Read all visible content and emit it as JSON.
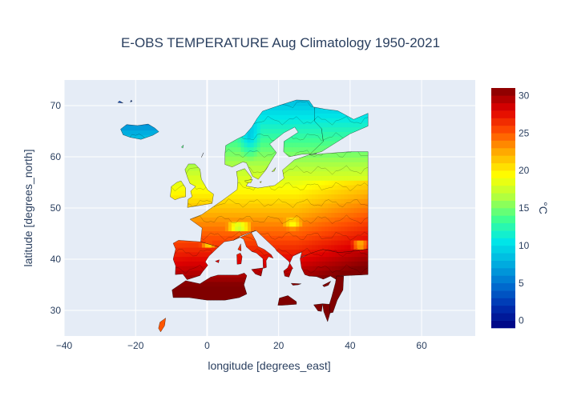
{
  "chart_data": {
    "type": "heatmap",
    "title": "E-OBS TEMPERATURE Aug Climatology 1950-2021",
    "xlabel": "longitude [degrees_east]",
    "ylabel": "latitude [degrees_north]",
    "xlim": [
      -40,
      75
    ],
    "ylim": [
      25,
      75
    ],
    "xticks": [
      -40,
      -20,
      0,
      20,
      40,
      60
    ],
    "xtick_labels": [
      "−40",
      "−20",
      "0",
      "20",
      "40",
      "60"
    ],
    "yticks": [
      30,
      40,
      50,
      60,
      70
    ],
    "colorbar": {
      "unit": "°C",
      "range": [
        -1,
        31
      ],
      "ticks": [
        0,
        5,
        10,
        15,
        20,
        25,
        30
      ],
      "colorscale": [
        "#000080",
        "#0030b0",
        "#0070d0",
        "#00b0e0",
        "#00e8e8",
        "#40ff90",
        "#b0ff40",
        "#ffff00",
        "#ffb000",
        "#ff5000",
        "#e00000",
        "#800000"
      ]
    },
    "grid": true,
    "legend": "none",
    "data_extent": {
      "lon": [
        -25,
        45
      ],
      "lat": [
        25,
        71
      ]
    },
    "regions": [
      {
        "name": "Iceland",
        "points": [
          [
            -24.2,
            65.4
          ],
          [
            -22.5,
            66.3
          ],
          [
            -19.5,
            66.1
          ],
          [
            -16.5,
            66.4
          ],
          [
            -14.6,
            65.6
          ],
          [
            -13.5,
            64.9
          ],
          [
            -15.2,
            64.2
          ],
          [
            -18.5,
            63.4
          ],
          [
            -21.5,
            63.8
          ],
          [
            -23.5,
            64.3
          ]
        ],
        "temp": 8
      },
      {
        "name": "Britain",
        "points": [
          [
            -5.5,
            50.1
          ],
          [
            1.4,
            50.9
          ],
          [
            1.8,
            52.7
          ],
          [
            0.2,
            53.5
          ],
          [
            -1.6,
            55.6
          ],
          [
            -2,
            57.6
          ],
          [
            -3.4,
            58.6
          ],
          [
            -5.2,
            58.6
          ],
          [
            -6.2,
            57.5
          ],
          [
            -5.5,
            56
          ],
          [
            -4.8,
            54.8
          ],
          [
            -3.2,
            54.2
          ],
          [
            -4.6,
            53.3
          ],
          [
            -4.2,
            52.2
          ],
          [
            -5.3,
            51.7
          ]
        ],
        "temp": 15
      },
      {
        "name": "Ireland",
        "points": [
          [
            -6,
            52.2
          ],
          [
            -6,
            53.9
          ],
          [
            -7.3,
            55.3
          ],
          [
            -8.5,
            55
          ],
          [
            -10,
            54.2
          ],
          [
            -10.3,
            52.2
          ],
          [
            -9,
            51.6
          ],
          [
            -7.5,
            52
          ]
        ],
        "temp": 15
      },
      {
        "name": "Iberia",
        "points": [
          [
            -9.5,
            43.1
          ],
          [
            -8,
            43.7
          ],
          [
            -1.8,
            43.4
          ],
          [
            3.2,
            42.4
          ],
          [
            0.5,
            40.6
          ],
          [
            -0.5,
            39.5
          ],
          [
            0.2,
            38.8
          ],
          [
            -1.2,
            37.6
          ],
          [
            -2,
            36.8
          ],
          [
            -5.6,
            36
          ],
          [
            -6.8,
            37.1
          ],
          [
            -8.9,
            37
          ],
          [
            -8.8,
            38.7
          ],
          [
            -9.5,
            40
          ],
          [
            -8.8,
            42
          ]
        ],
        "temp": 23
      },
      {
        "name": "Continent",
        "points": [
          [
            -1.8,
            43.4
          ],
          [
            -1.4,
            46.1
          ],
          [
            -4.8,
            47.8
          ],
          [
            -1.5,
            48.7
          ],
          [
            1.4,
            50.1
          ],
          [
            4.3,
            51.5
          ],
          [
            8.4,
            53.6
          ],
          [
            8.6,
            55.4
          ],
          [
            8.2,
            57.1
          ],
          [
            10.5,
            57.7
          ],
          [
            12.5,
            55.9
          ],
          [
            10.9,
            54.3
          ],
          [
            14.2,
            53.9
          ],
          [
            18.9,
            54.4
          ],
          [
            21.5,
            55.8
          ],
          [
            21.1,
            57.4
          ],
          [
            24.4,
            59.4
          ],
          [
            28.6,
            60.4
          ],
          [
            40,
            61
          ],
          [
            45,
            61
          ],
          [
            45,
            42
          ],
          [
            41.6,
            41.6
          ],
          [
            36.8,
            41.3
          ],
          [
            32.4,
            41.9
          ],
          [
            29,
            41.1
          ],
          [
            27,
            40.6
          ],
          [
            26.1,
            40.3
          ],
          [
            26.5,
            41.4
          ],
          [
            24,
            40.6
          ],
          [
            22.5,
            38.3
          ],
          [
            21.4,
            37.7
          ],
          [
            21.7,
            36.7
          ],
          [
            22.9,
            36.5
          ],
          [
            23.7,
            38
          ],
          [
            24,
            38.2
          ],
          [
            22.8,
            39.6
          ],
          [
            19.5,
            41.6
          ],
          [
            19,
            42.1
          ],
          [
            13.7,
            45.6
          ],
          [
            12.3,
            45.3
          ],
          [
            8.9,
            44.4
          ],
          [
            7.4,
            43.7
          ],
          [
            4.8,
            43.4
          ],
          [
            3.2,
            42.4
          ]
        ],
        "temp": 18
      },
      {
        "name": "Scandinavia",
        "points": [
          [
            5,
            58.5
          ],
          [
            7,
            58
          ],
          [
            10,
            59
          ],
          [
            11,
            58.8
          ],
          [
            12.7,
            56.2
          ],
          [
            14.3,
            55.6
          ],
          [
            16.5,
            57.5
          ],
          [
            18,
            59.3
          ],
          [
            19.4,
            60.8
          ],
          [
            17.5,
            62.5
          ],
          [
            21.5,
            64.7
          ],
          [
            24.5,
            65.8
          ],
          [
            25.5,
            64.8
          ],
          [
            21.5,
            63
          ],
          [
            21.4,
            61
          ],
          [
            22.9,
            60
          ],
          [
            26.5,
            60.5
          ],
          [
            30.5,
            60.6
          ],
          [
            32.5,
            63
          ],
          [
            32,
            65.5
          ],
          [
            30.5,
            67
          ],
          [
            30,
            69.5
          ],
          [
            28.5,
            71
          ],
          [
            25,
            71.1
          ],
          [
            20,
            70
          ],
          [
            15.5,
            68.9
          ],
          [
            14,
            67.5
          ],
          [
            12.5,
            65.8
          ],
          [
            10.5,
            64.2
          ],
          [
            8.2,
            63.4
          ],
          [
            5.2,
            62.2
          ],
          [
            5,
            60.5
          ]
        ],
        "temp": 11
      },
      {
        "name": "Finland-Russia",
        "points": [
          [
            28.6,
            60.4
          ],
          [
            32,
            61
          ],
          [
            40,
            64.5
          ],
          [
            45,
            66
          ],
          [
            45,
            68.5
          ],
          [
            41,
            67.3
          ],
          [
            36.5,
            69
          ],
          [
            33,
            69.3
          ],
          [
            30,
            69.7
          ],
          [
            30,
            67
          ],
          [
            32,
            65.5
          ],
          [
            32.5,
            63
          ]
        ],
        "temp": 11
      },
      {
        "name": "Italy",
        "points": [
          [
            7.4,
            43.7
          ],
          [
            8.9,
            44.4
          ],
          [
            10.2,
            43.9
          ],
          [
            11,
            42.4
          ],
          [
            12.5,
            41.5
          ],
          [
            13.8,
            41.2
          ],
          [
            15.6,
            40.1
          ],
          [
            15.7,
            38.2
          ],
          [
            16.6,
            38.4
          ],
          [
            16.5,
            39.7
          ],
          [
            17.2,
            40.5
          ],
          [
            18.5,
            40.2
          ],
          [
            17.9,
            40.9
          ],
          [
            16,
            41.9
          ],
          [
            14.2,
            42.5
          ],
          [
            13.6,
            43.6
          ],
          [
            12.3,
            45.3
          ],
          [
            13.7,
            45.6
          ]
        ],
        "temp": 23
      },
      {
        "name": "Sicily",
        "points": [
          [
            12.4,
            38
          ],
          [
            15.6,
            38.3
          ],
          [
            15.1,
            36.7
          ],
          [
            13.5,
            37.1
          ]
        ],
        "temp": 25
      },
      {
        "name": "Sardinia",
        "points": [
          [
            8.4,
            39
          ],
          [
            8.3,
            40.9
          ],
          [
            9.3,
            41.2
          ],
          [
            9.8,
            40.5
          ],
          [
            9.5,
            39.1
          ]
        ],
        "temp": 23
      },
      {
        "name": "Corsica",
        "points": [
          [
            8.6,
            41.9
          ],
          [
            9.4,
            43
          ],
          [
            9.5,
            41.6
          ]
        ],
        "temp": 21
      },
      {
        "name": "Crete",
        "points": [
          [
            23.5,
            35.3
          ],
          [
            26.3,
            35.2
          ],
          [
            25.5,
            35
          ],
          [
            24,
            34.9
          ]
        ],
        "temp": 26
      },
      {
        "name": "Cyprus",
        "points": [
          [
            32.3,
            34.9
          ],
          [
            34.6,
            35.7
          ],
          [
            33.9,
            34.9
          ],
          [
            32.7,
            34.6
          ]
        ],
        "temp": 27
      },
      {
        "name": "Anatolia",
        "points": [
          [
            26,
            40.2
          ],
          [
            26.4,
            38.3
          ],
          [
            27.3,
            37
          ],
          [
            28.5,
            36.7
          ],
          [
            30.6,
            36.6
          ],
          [
            32.5,
            36.1
          ],
          [
            34.5,
            36.7
          ],
          [
            36.2,
            36
          ],
          [
            36.2,
            36.7
          ],
          [
            45,
            37
          ],
          [
            45,
            42
          ],
          [
            41.6,
            41.6
          ],
          [
            36.8,
            41.3
          ],
          [
            32.4,
            41.9
          ],
          [
            29.1,
            41.2
          ],
          [
            27,
            40.5
          ]
        ],
        "temp": 23
      },
      {
        "name": "North Africa",
        "points": [
          [
            -6,
            35.8
          ],
          [
            -2,
            35.2
          ],
          [
            1,
            36.5
          ],
          [
            3,
            36.9
          ],
          [
            8.6,
            36.9
          ],
          [
            10.4,
            37.3
          ],
          [
            11.1,
            36.8
          ],
          [
            10.3,
            35
          ],
          [
            11.1,
            33.2
          ],
          [
            9,
            32.5
          ],
          [
            5,
            32
          ],
          [
            0,
            32
          ],
          [
            -5,
            32.5
          ],
          [
            -9.5,
            32.5
          ],
          [
            -9.8,
            34
          ]
        ],
        "temp": 25
      },
      {
        "name": "Libya coast",
        "points": [
          [
            19.8,
            31
          ],
          [
            20.2,
            32.4
          ],
          [
            22.6,
            32.9
          ],
          [
            25,
            31.7
          ],
          [
            25,
            31.2
          ],
          [
            21,
            31
          ]
        ],
        "temp": 26
      },
      {
        "name": "Levant",
        "points": [
          [
            34.2,
            31.2
          ],
          [
            34.9,
            32.8
          ],
          [
            35.9,
            35.4
          ],
          [
            36.2,
            36.7
          ],
          [
            38.2,
            36.7
          ],
          [
            38,
            34
          ],
          [
            36.4,
            32
          ],
          [
            35.2,
            29.6
          ],
          [
            34.4,
            29.5
          ]
        ],
        "temp": 28
      },
      {
        "name": "Sinai",
        "points": [
          [
            32.3,
            31.3
          ],
          [
            34.2,
            31.2
          ],
          [
            34.4,
            29.5
          ],
          [
            33.7,
            27.8
          ],
          [
            32.6,
            29.8
          ]
        ],
        "temp": 28
      },
      {
        "name": "Egypt Delta",
        "points": [
          [
            29.8,
            31.1
          ],
          [
            32.3,
            31.3
          ],
          [
            32,
            29.8
          ],
          [
            31,
            29.9
          ]
        ],
        "temp": 28
      },
      {
        "name": "Sahara coast",
        "points": [
          [
            -13.2,
            27.7
          ],
          [
            -11.6,
            28.5
          ],
          [
            -11.9,
            27
          ],
          [
            -13,
            25.8
          ],
          [
            -13.6,
            26.5
          ]
        ],
        "temp": 26
      },
      {
        "name": "Danish islands",
        "points": [
          [
            10.5,
            55.3
          ],
          [
            12.7,
            55.6
          ],
          [
            12.2,
            54.9
          ],
          [
            11,
            55
          ]
        ],
        "temp": 16
      },
      {
        "name": "Gotland",
        "points": [
          [
            18.1,
            57.1
          ],
          [
            19.2,
            57.9
          ],
          [
            18.8,
            57.2
          ]
        ],
        "temp": 15
      },
      {
        "name": "Bornholm",
        "points": [
          [
            14.7,
            55.1
          ],
          [
            15.2,
            55.2
          ],
          [
            15,
            54.9
          ]
        ],
        "temp": 16
      },
      {
        "name": "Faroe",
        "points": [
          [
            -7.2,
            61.9
          ],
          [
            -6.6,
            62.3
          ],
          [
            -6.8,
            61.7
          ]
        ],
        "temp": 10
      },
      {
        "name": "Shetland",
        "points": [
          [
            -1.6,
            59.9
          ],
          [
            -1,
            60.8
          ],
          [
            -1.4,
            60.2
          ]
        ],
        "temp": 12
      },
      {
        "name": "Balearics",
        "points": [
          [
            2.3,
            39.6
          ],
          [
            3.4,
            39.9
          ],
          [
            3.2,
            39.3
          ],
          [
            2.6,
            39.5
          ]
        ],
        "temp": 25
      },
      {
        "name": "Svalbard-edge",
        "points": [
          [
            -25,
            70.6
          ],
          [
            -24.5,
            70.9
          ],
          [
            -23.5,
            70.5
          ]
        ],
        "temp": 2
      },
      {
        "name": "Jan Mayen",
        "points": [
          [
            -21.5,
            70.7
          ],
          [
            -21.2,
            71.1
          ],
          [
            -21,
            70.8
          ]
        ],
        "temp": 5
      }
    ],
    "contour_levels": [
      1,
      3,
      5,
      7,
      9,
      11,
      13,
      15,
      17,
      19,
      21,
      23,
      25,
      27,
      29
    ]
  }
}
